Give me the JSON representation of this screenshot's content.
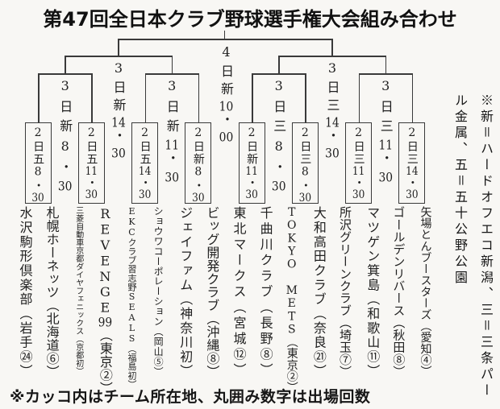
{
  "title": "第47回全日本クラブ野球選手権大会組み合わせ",
  "notes": {
    "venues": "※新＝ハードオフエコ新潟、三＝三条パー\nル金属、五＝五十公野公園",
    "bottom": "※カッコ内はチーム所在地、丸囲み数字は出場回数"
  },
  "bracket": {
    "final": {
      "label": "4日新10・00"
    },
    "semifinals": [
      {
        "label": "3日新14・30"
      },
      {
        "label": "3日三14・30"
      }
    ],
    "quarterfinals": [
      {
        "label": "3日新8・30"
      },
      {
        "label": "3日新11・30"
      },
      {
        "label": "3日三8・30"
      },
      {
        "label": "3日三11・30"
      }
    ],
    "round1": [
      {
        "label": "2日五8・30"
      },
      {
        "label": "2日五11・30"
      },
      {
        "label": "2日五14・30"
      },
      {
        "label": "2日新8・30"
      },
      {
        "label": "2日新11・30"
      },
      {
        "label": "2日三8・30"
      },
      {
        "label": "2日三11・30"
      },
      {
        "label": "2日三14・30"
      }
    ],
    "teams": [
      {
        "name": "水沢駒形倶楽部",
        "origin": "岩手",
        "appearances": "㉔",
        "display": "水沢駒形倶楽部（岩手㉔）"
      },
      {
        "name": "札幌ホーネッツ",
        "origin": "北海道",
        "appearances": "⑥",
        "display": "札幌ホーネッツ（北海道⑥）"
      },
      {
        "name": "三菱自動車京都ダイヤフェニックス",
        "origin": "京都",
        "appearances": "初",
        "display": "三菱自動車京都ダイヤフェニックス（京都初）"
      },
      {
        "name": "REVENGE99",
        "origin": "東京",
        "appearances": "②",
        "display": "REVENGE99（東京②）"
      },
      {
        "name": "EKCクラブ習志野SEALS",
        "origin": "福島",
        "appearances": "初",
        "display": "EKCクラブ習志野SEALS（福島初）"
      },
      {
        "name": "ショウワコーポレーション",
        "origin": "岡山",
        "appearances": "⑤",
        "display": "ショウワコーポレーション（岡山⑤）"
      },
      {
        "name": "ジェイファム",
        "origin": "神奈川",
        "appearances": "初",
        "display": "ジェイファム（神奈川初）"
      },
      {
        "name": "ビッグ開発クラブ",
        "origin": "沖縄",
        "appearances": "⑧",
        "display": "ビッグ開発クラブ（沖縄⑧）"
      },
      {
        "name": "東北マークス",
        "origin": "宮城",
        "appearances": "⑫",
        "display": "東北マークス（宮城⑫）"
      },
      {
        "name": "千曲川クラブ",
        "origin": "長野",
        "appearances": "⑧",
        "display": "千曲川クラブ（長野⑧）"
      },
      {
        "name": "TOKYO METS",
        "origin": "東京",
        "appearances": "②",
        "display": "TOKYO METS（東京②）"
      },
      {
        "name": "大和高田クラブ",
        "origin": "奈良",
        "appearances": "㉑",
        "display": "大和高田クラブ（奈良㉑）"
      },
      {
        "name": "所沢グリーンクラブ",
        "origin": "埼玉",
        "appearances": "⑦",
        "display": "所沢グリーンクラブ（埼玉⑦）"
      },
      {
        "name": "マツゲン箕島",
        "origin": "和歌山",
        "appearances": "⑪",
        "display": "マツゲン箕島（和歌山⑪）"
      },
      {
        "name": "ゴールデンリバース",
        "origin": "秋田",
        "appearances": "⑧",
        "display": "ゴールデンリバース（秋田⑧）"
      },
      {
        "name": "矢場とんブースターズ",
        "origin": "愛知",
        "appearances": "④",
        "display": "矢場とんブースターズ（愛知④）"
      }
    ]
  },
  "colors": {
    "ink": "#3a3a3a",
    "text": "#1f1f1f",
    "paper": "#f8f7f4"
  }
}
